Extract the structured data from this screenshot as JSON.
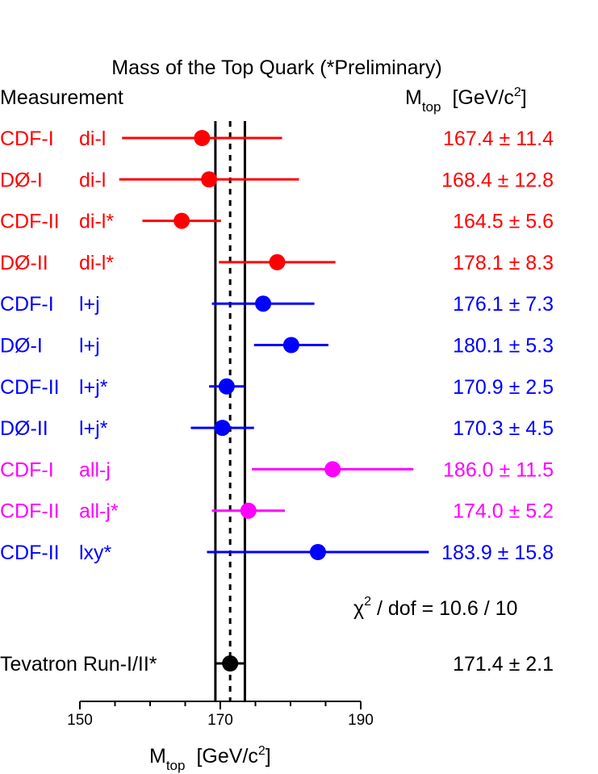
{
  "chart_data": {
    "type": "scatter",
    "title": "Mass of the Top Quark (*Preliminary)",
    "column_left_header": "Measurement",
    "column_right_header": {
      "base": "M",
      "sub": "top",
      "unit_prefix": "[GeV/c",
      "unit_sup": "2",
      "unit_suffix": "]"
    },
    "xaxis": {
      "base": "M",
      "sub": "top",
      "unit_prefix": "[GeV/c",
      "unit_sup": "2",
      "unit_suffix": "]"
    },
    "xlim": [
      150,
      190
    ],
    "xticks": [
      150,
      170,
      190
    ],
    "reference_band": {
      "center": 171.4,
      "low": 169.3,
      "high": 173.5
    },
    "measurements": [
      {
        "experiment": "CDF-I",
        "channel": "di-l",
        "value": 167.4,
        "error": 11.4,
        "color": "#ff0000",
        "display": "167.4 ± 11.4"
      },
      {
        "experiment": "DØ-I",
        "channel": "di-l",
        "value": 168.4,
        "error": 12.8,
        "color": "#ff0000",
        "display": "168.4 ± 12.8"
      },
      {
        "experiment": "CDF-II",
        "channel": "di-l*",
        "value": 164.5,
        "error": 5.6,
        "color": "#ff0000",
        "display": "164.5 ±  5.6"
      },
      {
        "experiment": "DØ-II",
        "channel": "di-l*",
        "value": 178.1,
        "error": 8.3,
        "color": "#ff0000",
        "display": "178.1 ±  8.3"
      },
      {
        "experiment": "CDF-I",
        "channel": "l+j",
        "value": 176.1,
        "error": 7.3,
        "color": "#0000ff",
        "display": "176.1 ±  7.3"
      },
      {
        "experiment": "DØ-I",
        "channel": "l+j",
        "value": 180.1,
        "error": 5.3,
        "color": "#0000ff",
        "display": "180.1 ±  5.3"
      },
      {
        "experiment": "CDF-II",
        "channel": "l+j*",
        "value": 170.9,
        "error": 2.5,
        "color": "#0000ff",
        "display": "170.9 ±  2.5"
      },
      {
        "experiment": "DØ-II",
        "channel": "l+j*",
        "value": 170.3,
        "error": 4.5,
        "color": "#0000ff",
        "display": "170.3 ±  4.5"
      },
      {
        "experiment": "CDF-I",
        "channel": "all-j",
        "value": 186.0,
        "error": 11.5,
        "color": "#ff00ff",
        "display": "186.0 ± 11.5"
      },
      {
        "experiment": "CDF-II",
        "channel": "all-j*",
        "value": 174.0,
        "error": 5.2,
        "color": "#ff00ff",
        "display": "174.0 ±  5.2"
      },
      {
        "experiment": "CDF-II",
        "channel": "lxy*",
        "value": 183.9,
        "error": 15.8,
        "color": "#0000ff",
        "display": "183.9 ± 15.8"
      }
    ],
    "chi2": {
      "symbol": "χ",
      "sup": "2",
      "text": " / dof  =  10.6 / 10"
    },
    "combination": {
      "label": "Tevatron Run-I/II*",
      "value": 171.4,
      "error": 2.1,
      "color": "#000000",
      "display": "171.4 ±  2.1"
    },
    "grid": false,
    "legend": "none"
  }
}
